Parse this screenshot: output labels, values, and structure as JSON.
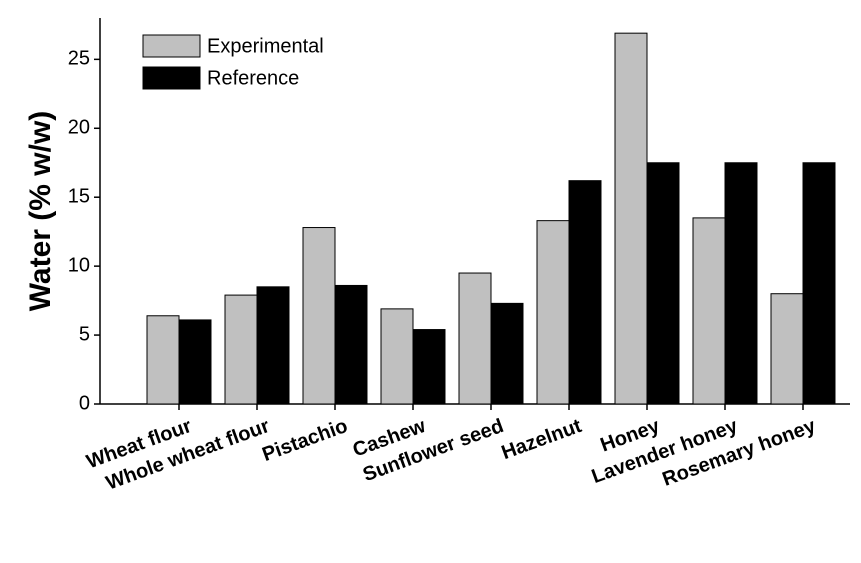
{
  "chart_data": {
    "type": "bar",
    "y_label": "Water (% w/w)",
    "categories": [
      "Wheat flour",
      "Whole wheat flour",
      "Pistachio",
      "Cashew",
      "Sunflower seed",
      "Hazelnut",
      "Honey",
      "Lavender honey",
      "Rosemary honey"
    ],
    "series": [
      {
        "name": "Experimental",
        "color": "#c0c0c0",
        "values": [
          6.4,
          7.9,
          12.8,
          6.9,
          9.5,
          13.3,
          26.9,
          13.5,
          8.0
        ]
      },
      {
        "name": "Reference",
        "color": "#000000",
        "values": [
          6.1,
          8.5,
          8.6,
          5.4,
          7.3,
          16.2,
          17.5,
          17.5,
          17.5
        ]
      }
    ],
    "ylim": [
      0,
      28
    ],
    "yticks": [
      0,
      5,
      10,
      15,
      20,
      25
    ],
    "legend": "upper-left"
  }
}
